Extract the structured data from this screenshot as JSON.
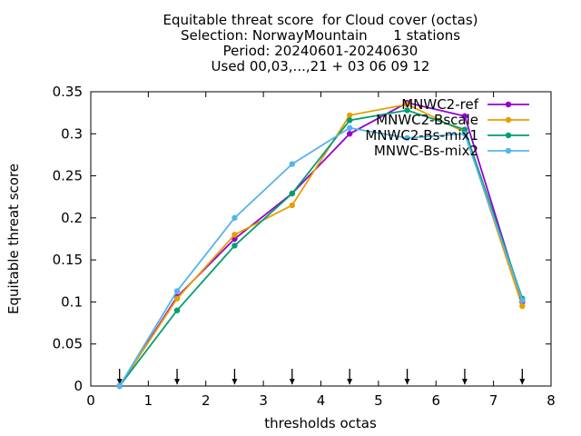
{
  "chart_data": {
    "type": "line",
    "title_lines": [
      "Equitable threat score  for Cloud cover (octas)",
      "Selection: NorwayMountain      1 stations",
      "Period: 20240601-20240630",
      "Used 00,03,...,21 + 03 06 09 12"
    ],
    "xlabel": "thresholds octas",
    "ylabel": "Equitable threat score",
    "xlim": [
      0,
      8
    ],
    "ylim": [
      0,
      0.35
    ],
    "x_ticks": [
      "0",
      "1",
      "2",
      "3",
      "4",
      "5",
      "6",
      "7",
      "8"
    ],
    "y_ticks": [
      "0",
      "0.05",
      "0.1",
      "0.15",
      "0.2",
      "0.25",
      "0.3",
      "0.35"
    ],
    "x": [
      0.5,
      1.5,
      2.5,
      3.5,
      4.5,
      5.5,
      6.5,
      7.5
    ],
    "threshold_arrows": [
      0.5,
      1.5,
      2.5,
      3.5,
      4.5,
      5.5,
      6.5,
      7.5
    ],
    "legend_position": "top-right",
    "series": [
      {
        "name": "MNWC2-ref",
        "color": "#9400d3",
        "values": [
          0.0,
          0.106,
          0.175,
          0.229,
          0.3,
          0.337,
          0.321,
          0.1
        ]
      },
      {
        "name": "MNWC2-Bscale",
        "color": "#e69f00",
        "values": [
          0.0,
          0.104,
          0.18,
          0.215,
          0.322,
          0.335,
          0.302,
          0.095
        ]
      },
      {
        "name": "MNWC2-Bs-mix1",
        "color": "#009e73",
        "values": [
          0.0,
          0.09,
          0.167,
          0.229,
          0.316,
          0.328,
          0.305,
          0.104
        ]
      },
      {
        "name": "MNWC-Bs-mix2",
        "color": "#56b4e9",
        "values": [
          0.0,
          0.113,
          0.2,
          0.264,
          0.307,
          0.295,
          0.3,
          0.102
        ]
      }
    ]
  }
}
